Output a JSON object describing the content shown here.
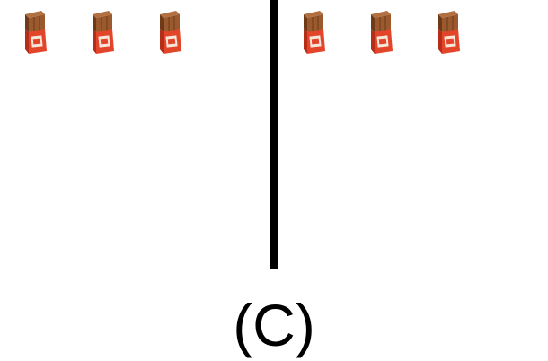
{
  "figure": {
    "caption": "(C)",
    "item_icon": "chocolate-bar-icon",
    "groups": [
      {
        "count": 3
      },
      {
        "count": 3
      }
    ],
    "colors": {
      "chocolate": "#9b5a2e",
      "chocolate_dark": "#6e3a18",
      "wrapper": "#e2452a",
      "wrapper_dark": "#b52e18",
      "label": "#f6e7d8",
      "divider": "#000000"
    }
  }
}
